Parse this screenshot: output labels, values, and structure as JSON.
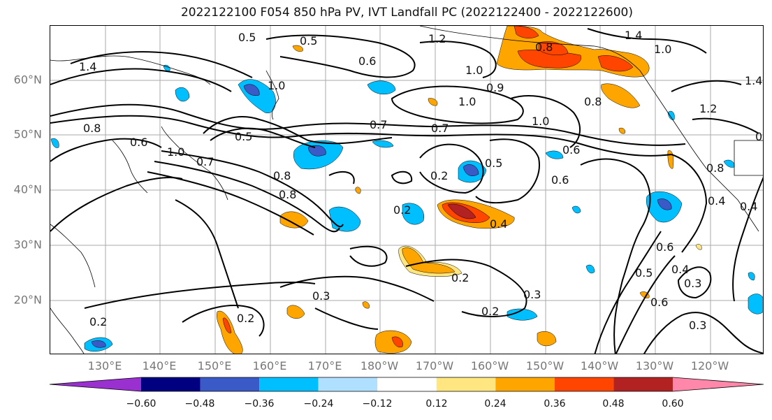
{
  "title": "2022122100 F054 850 hPa PV, IVT Landfall PC (2022122400 - 2022122600)",
  "lat_labels": [
    "60°N",
    "50°N",
    "40°N",
    "30°N",
    "20°N"
  ],
  "lon_labels": [
    "130°E",
    "140°E",
    "150°E",
    "160°E",
    "170°E",
    "180°W",
    "170°W",
    "160°W",
    "150°W",
    "140°W",
    "130°W",
    "120°W"
  ],
  "colorbar": {
    "ticks": [
      "−0.60",
      "−0.48",
      "−0.36",
      "−0.24",
      "−0.12",
      "0.12",
      "0.24",
      "0.36",
      "0.48",
      "0.60"
    ],
    "colors": [
      "#9b30d0",
      "#000080",
      "#3a5ac8",
      "#00bfff",
      "#b0e0ff",
      "#ffffff",
      "#ffe680",
      "#ffa500",
      "#ff4500",
      "#b22222",
      "#ff88aa"
    ]
  },
  "contour_labels": [
    "0.5",
    "0.5",
    "0.6",
    "1.2",
    "1.4",
    "1.4",
    "1.0",
    "0.8",
    "1.0",
    "1.0",
    "0.9",
    "0.7",
    "0.7",
    "0.8",
    "1.0",
    "1.0",
    "0.6",
    "0.8",
    "0.7",
    "0.6",
    "0.5",
    "1.0",
    "0.6",
    "0.5",
    "0.2",
    "0.8",
    "0.8",
    "0.2",
    "0.4",
    "0.6",
    "0.4",
    "0.4",
    "0.5",
    "0.4",
    "0.3",
    "0.2",
    "0.3",
    "0.2",
    "0.3",
    "0.6",
    "0.3",
    "0.2",
    "0.2",
    "0.2",
    "1.4",
    "1.2",
    "0.8"
  ],
  "colors": {
    "blue_fill": "#00bfff",
    "mid_blue": "#3a5ac8",
    "orange_fill": "#ffa500",
    "yellow_fill": "#ffe680",
    "red_fill": "#ff4500",
    "dark_red": "#b22222",
    "grid": "#aaaaaa",
    "contour": "#000000"
  }
}
